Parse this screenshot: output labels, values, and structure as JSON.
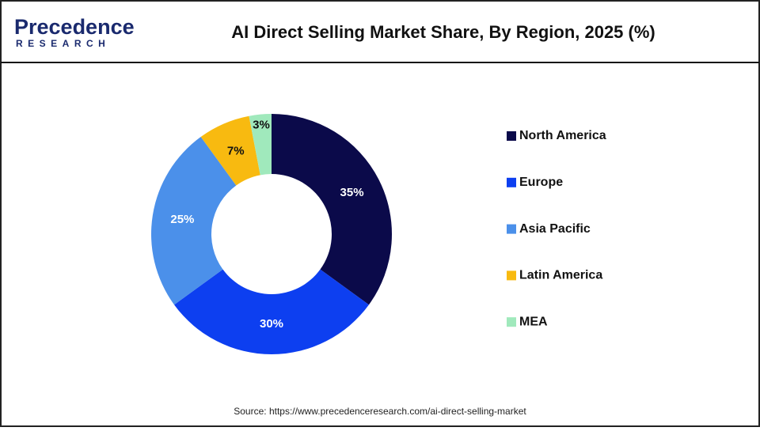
{
  "logo": {
    "name": "Precedence",
    "tagline": "RESEARCH"
  },
  "chart_data": {
    "type": "donut",
    "title": "AI Direct Selling Market Share, By Region, 2025 (%)",
    "categories": [
      "North America",
      "Europe",
      "Asia Pacific",
      "Latin America",
      "MEA"
    ],
    "values": [
      35,
      30,
      25,
      7,
      3
    ],
    "value_labels": [
      "35%",
      "30%",
      "25%",
      "7%",
      "3%"
    ],
    "colors": [
      "#0b0a4a",
      "#0d3ff0",
      "#4b90ea",
      "#f8ba10",
      "#a0e9bc"
    ],
    "source": "Source: https://www.precedenceresearch.com/ai-direct-selling-market"
  }
}
